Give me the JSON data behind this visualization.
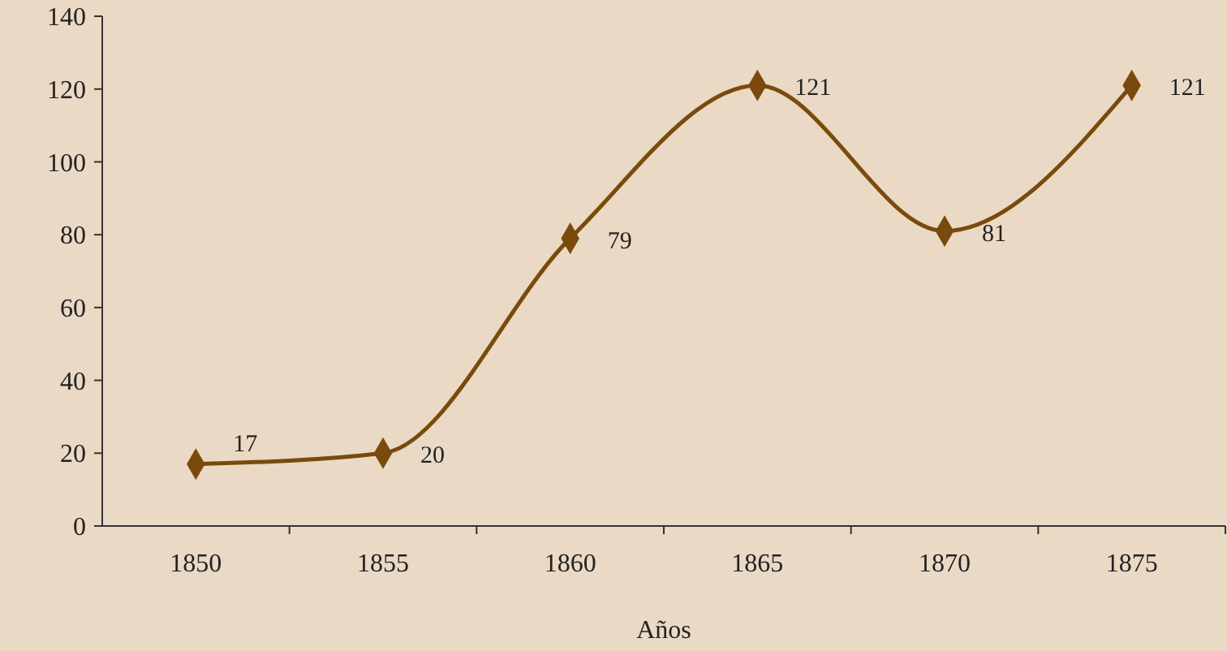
{
  "chart_data": {
    "type": "line",
    "xlabel": "Años",
    "categories": [
      "1850",
      "1855",
      "1860",
      "1865",
      "1870",
      "1875"
    ],
    "series": [
      {
        "color": "#7a4a0c",
        "values": [
          17,
          20,
          79,
          121,
          81,
          121
        ]
      }
    ],
    "ylim": [
      0,
      140
    ],
    "yticks": [
      0,
      20,
      40,
      60,
      80,
      100,
      120,
      140
    ],
    "marker": "diamond",
    "line_style": "solid",
    "data_labels": true
  }
}
